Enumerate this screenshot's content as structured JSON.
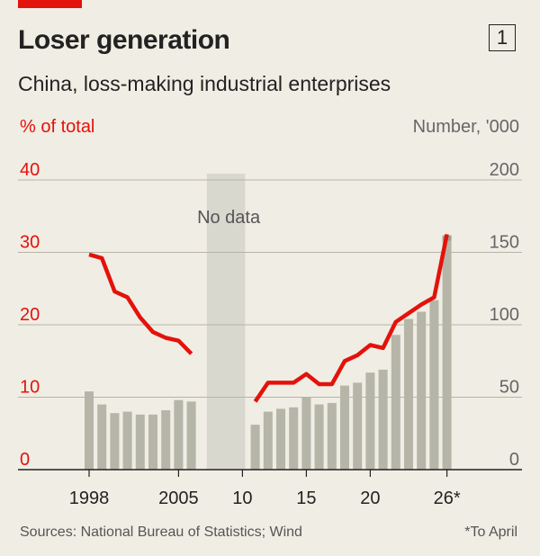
{
  "header": {
    "title": "Loser generation",
    "chart_number": "1",
    "subtitle": "China, loss-making industrial enterprises"
  },
  "footer": {
    "source": "Sources: National Bureau of Statistics; Wind",
    "note": "*To April"
  },
  "colors": {
    "accent": "#e3120b",
    "bars": "#b5b5a8",
    "no_data_band": "#d9d8cf",
    "background": "#f0ede4"
  },
  "chart_data": {
    "type": "bar",
    "x_tick_labels": [
      "1998",
      "2005",
      "10",
      "15",
      "20",
      "26*"
    ],
    "x_tick_years": [
      1998,
      2005,
      2010,
      2015,
      2020,
      2026
    ],
    "left_axis": {
      "label": "% of total",
      "ticks": [
        0,
        10,
        20,
        30,
        40
      ],
      "ylim": [
        0,
        40
      ]
    },
    "right_axis": {
      "label": "Number, '000",
      "ticks": [
        0,
        50,
        100,
        150,
        200
      ],
      "ylim": [
        0,
        200
      ]
    },
    "annotation": {
      "text": "No data",
      "x_range": [
        2007,
        2010
      ]
    },
    "grid": true,
    "bars_number_thousands": [
      {
        "x": 1998,
        "y": 54
      },
      {
        "x": 1999,
        "y": 45
      },
      {
        "x": 2000,
        "y": 39
      },
      {
        "x": 2001,
        "y": 40
      },
      {
        "x": 2002,
        "y": 38
      },
      {
        "x": 2003,
        "y": 38
      },
      {
        "x": 2004,
        "y": 41
      },
      {
        "x": 2005,
        "y": 48
      },
      {
        "x": 2006,
        "y": 47
      },
      {
        "x": 2011,
        "y": 31
      },
      {
        "x": 2012,
        "y": 40
      },
      {
        "x": 2013,
        "y": 42
      },
      {
        "x": 2014,
        "y": 43
      },
      {
        "x": 2015,
        "y": 50
      },
      {
        "x": 2016,
        "y": 45
      },
      {
        "x": 2017,
        "y": 46
      },
      {
        "x": 2018,
        "y": 58
      },
      {
        "x": 2019,
        "y": 60
      },
      {
        "x": 2020,
        "y": 67
      },
      {
        "x": 2021,
        "y": 69
      },
      {
        "x": 2022,
        "y": 93
      },
      {
        "x": 2023,
        "y": 104
      },
      {
        "x": 2024,
        "y": 109
      },
      {
        "x": 2025,
        "y": 117
      },
      {
        "x": 2026,
        "y": 158
      }
    ],
    "line_percent_of_total": [
      {
        "x": 1998,
        "y": 29.7
      },
      {
        "x": 1999,
        "y": 29.2
      },
      {
        "x": 2000,
        "y": 24.6
      },
      {
        "x": 2001,
        "y": 23.8
      },
      {
        "x": 2002,
        "y": 21.0
      },
      {
        "x": 2003,
        "y": 19.0
      },
      {
        "x": 2004,
        "y": 18.2
      },
      {
        "x": 2005,
        "y": 17.8
      },
      {
        "x": 2006,
        "y": 16.0
      },
      {
        "x": 2011,
        "y": 9.4
      },
      {
        "x": 2012,
        "y": 12.0
      },
      {
        "x": 2013,
        "y": 12.0
      },
      {
        "x": 2014,
        "y": 12.0
      },
      {
        "x": 2015,
        "y": 13.2
      },
      {
        "x": 2016,
        "y": 11.8
      },
      {
        "x": 2017,
        "y": 11.8
      },
      {
        "x": 2018,
        "y": 15.0
      },
      {
        "x": 2019,
        "y": 15.8
      },
      {
        "x": 2020,
        "y": 17.2
      },
      {
        "x": 2021,
        "y": 16.8
      },
      {
        "x": 2022,
        "y": 20.4
      },
      {
        "x": 2023,
        "y": 21.6
      },
      {
        "x": 2024,
        "y": 22.8
      },
      {
        "x": 2025,
        "y": 23.8
      },
      {
        "x": 2026,
        "y": 32.5
      }
    ]
  }
}
